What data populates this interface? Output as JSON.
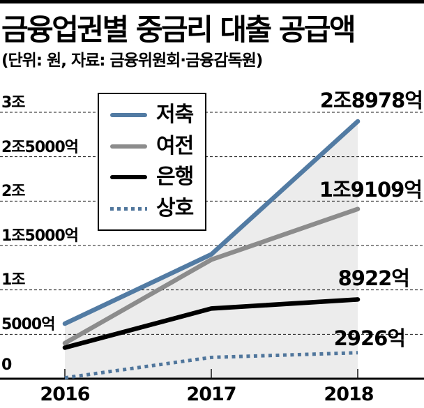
{
  "header": {
    "title": "금융업권별 중금리 대출 공급액",
    "subtitle": "(단위: 원, 자료: 금융위원회·금융감독원)"
  },
  "chart_data": {
    "type": "line",
    "title": "금융업권별 중금리 대출 공급액",
    "unit_note": "(단위: 원, 자료: 금융위원회·금융감독원)",
    "categories": [
      "2016",
      "2017",
      "2018"
    ],
    "xlabel": "",
    "ylabel": "",
    "ylim_eok": [
      0,
      30000
    ],
    "grid": "horizontal-dashed",
    "legend_position": "top-left-inside",
    "area_fill_under_series": "저축",
    "area_color": "#ececec",
    "y_ticks": [
      {
        "label": "3조",
        "value": 30000
      },
      {
        "label": "2조5000억",
        "value": 25000
      },
      {
        "label": "2조",
        "value": 20000
      },
      {
        "label": "1조5000억",
        "value": 15000
      },
      {
        "label": "1조",
        "value": 10000
      },
      {
        "label": "5000억",
        "value": 5000
      },
      {
        "label": "0",
        "value": 0
      }
    ],
    "series": [
      {
        "name": "저축",
        "style": "solid",
        "color": "#527ba3",
        "values": [
          6200,
          14000,
          28978
        ],
        "end_label": "2조8978억"
      },
      {
        "name": "여전",
        "style": "solid",
        "color": "#8c8c8c",
        "values": [
          4000,
          13400,
          19109
        ],
        "end_label": "1조9109억"
      },
      {
        "name": "은행",
        "style": "solid",
        "color": "#000000",
        "values": [
          3500,
          7900,
          8922
        ],
        "end_label": "8922억"
      },
      {
        "name": "상호",
        "style": "dotted",
        "color": "#50769c",
        "values": [
          100,
          2400,
          2926
        ],
        "end_label": "2926억"
      }
    ]
  }
}
